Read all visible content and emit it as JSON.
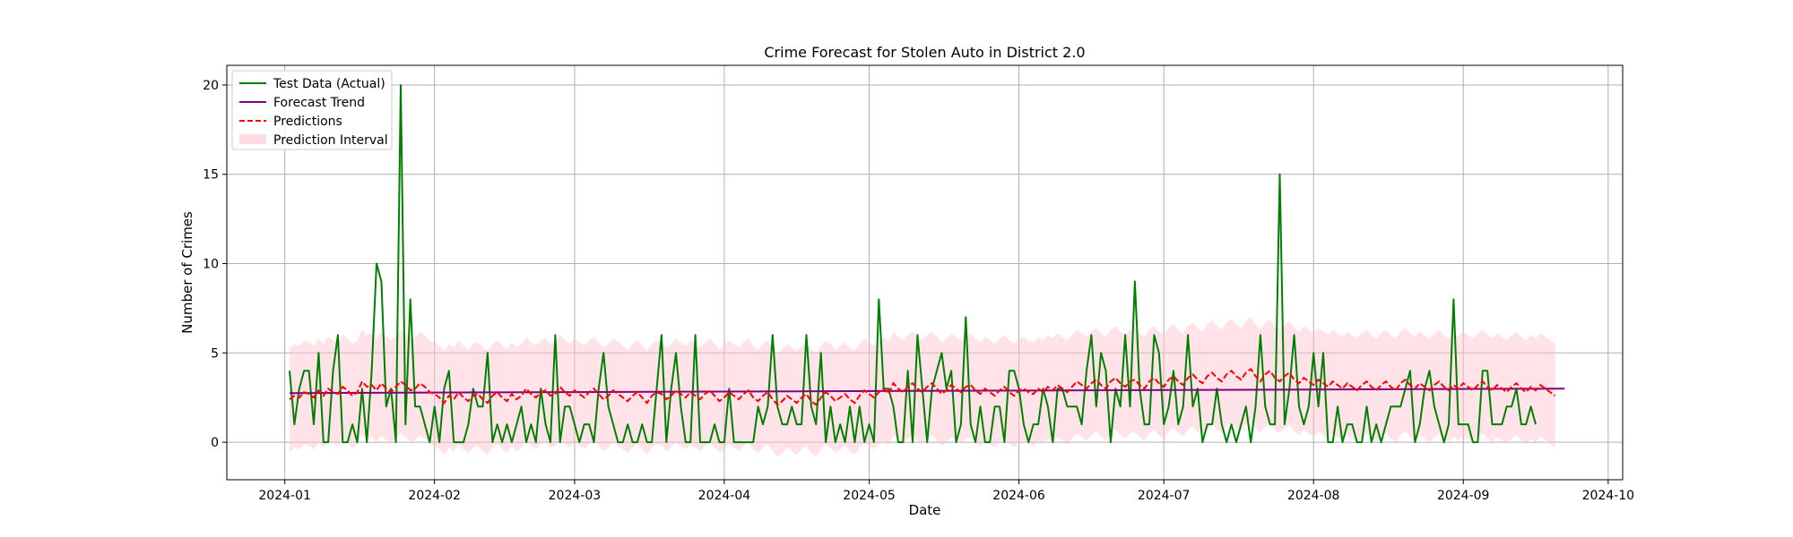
{
  "chart_data": {
    "type": "line",
    "title": "Crime Forecast for Stolen Auto in District 2.0",
    "xlabel": "Date",
    "ylabel": "Number of Crimes",
    "x_start": "2024-01-02",
    "x_end": "2024-09-22",
    "xlim": [
      "2023-12-20",
      "2024-10-04"
    ],
    "ylim": [
      -2.1,
      21.1
    ],
    "xticks": [
      "2024-01-01",
      "2024-02-01",
      "2024-03-01",
      "2024-04-01",
      "2024-05-01",
      "2024-06-01",
      "2024-07-01",
      "2024-08-01",
      "2024-09-01",
      "2024-10-01"
    ],
    "yticks": [
      0,
      5,
      10,
      15,
      20
    ],
    "grid": true,
    "legend_position": "top-left",
    "legend": [
      "Test Data (Actual)",
      "Forecast Trend",
      "Predictions",
      "Prediction Interval"
    ],
    "colors": {
      "actual": "#008000",
      "trend": "#800080",
      "predictions": "#ff0000",
      "interval": "#ffc0cb"
    },
    "series": [
      {
        "name": "Test Data (Actual)",
        "style": "solid",
        "values": [
          4,
          1,
          3,
          4,
          4,
          1,
          5,
          0,
          0,
          4,
          6,
          0,
          0,
          1,
          0,
          3,
          0,
          4,
          10,
          9,
          2,
          3,
          0,
          20,
          1,
          8,
          2,
          2,
          1,
          0,
          2,
          0,
          3,
          4,
          0,
          0,
          0,
          1,
          3,
          2,
          2,
          5,
          0,
          1,
          0,
          1,
          0,
          1,
          2,
          0,
          1,
          0,
          3,
          1,
          0,
          6,
          0,
          2,
          2,
          1,
          0,
          1,
          1,
          0,
          3,
          5,
          2,
          1,
          0,
          0,
          1,
          0,
          0,
          1,
          0,
          0,
          3,
          6,
          0,
          3,
          5,
          2,
          0,
          0,
          6,
          0,
          0,
          0,
          1,
          0,
          0,
          3,
          0,
          0,
          0,
          0,
          0,
          2,
          1,
          2,
          6,
          2,
          1,
          1,
          2,
          1,
          1,
          6,
          2,
          1,
          5,
          0,
          2,
          0,
          1,
          0,
          2,
          0,
          2,
          0,
          1,
          0,
          8,
          3,
          3,
          2,
          0,
          0,
          4,
          0,
          6,
          3,
          0,
          3,
          4,
          5,
          3,
          4,
          0,
          1,
          7,
          1,
          0,
          2,
          0,
          0,
          2,
          2,
          0,
          4,
          4,
          3,
          1,
          0,
          1,
          1,
          3,
          2,
          0,
          3,
          3,
          2,
          2,
          2,
          1,
          4,
          6,
          2,
          5,
          4,
          0,
          3,
          2,
          6,
          2,
          9,
          3,
          1,
          1,
          6,
          5,
          1,
          2,
          4,
          1,
          2,
          6,
          2,
          3,
          0,
          1,
          1,
          3,
          1,
          0,
          1,
          0,
          1,
          2,
          0,
          2,
          6,
          2,
          1,
          1,
          15,
          1,
          3,
          6,
          2,
          1,
          2,
          5,
          2,
          5,
          0,
          0,
          2,
          0,
          1,
          1,
          0,
          0,
          2,
          0,
          1,
          0,
          1,
          2,
          2,
          2,
          3,
          4,
          0,
          1,
          3,
          4,
          2,
          1,
          0,
          1,
          8,
          1,
          1,
          1,
          0,
          0,
          4,
          4,
          1,
          1,
          1,
          2,
          2,
          3,
          1,
          1,
          2,
          1
        ],
        "note": ""
      },
      {
        "name": "Forecast Trend",
        "style": "solid",
        "x": [
          "2024-01-02",
          "2024-09-22"
        ],
        "values": [
          2.75,
          3.0
        ]
      },
      {
        "name": "Predictions",
        "style": "dashed",
        "values": [
          2.4,
          2.6,
          2.5,
          2.8,
          2.7,
          2.5,
          2.9,
          2.6,
          3.0,
          2.8,
          2.7,
          3.1,
          2.9,
          2.6,
          2.8,
          3.4,
          3.1,
          3.2,
          2.9,
          3.3,
          3.0,
          2.8,
          3.1,
          3.4,
          3.2,
          2.9,
          3.0,
          3.3,
          3.1,
          2.8,
          2.7,
          2.5,
          2.2,
          2.6,
          2.4,
          2.8,
          2.5,
          2.3,
          2.6,
          2.7,
          2.4,
          2.2,
          2.6,
          2.8,
          2.5,
          2.3,
          2.7,
          2.4,
          2.6,
          3.0,
          2.7,
          2.5,
          2.8,
          2.9,
          2.6,
          2.7,
          3.1,
          2.8,
          2.6,
          2.9,
          2.7,
          2.5,
          2.8,
          3.0,
          2.7,
          2.4,
          2.6,
          2.9,
          2.7,
          2.5,
          2.3,
          2.6,
          2.8,
          2.5,
          2.2,
          2.6,
          2.8,
          2.7,
          2.4,
          2.6,
          2.9,
          2.7,
          2.5,
          2.8,
          2.6,
          2.4,
          2.7,
          2.9,
          2.6,
          2.3,
          2.5,
          2.8,
          2.6,
          2.4,
          2.7,
          2.9,
          2.5,
          2.3,
          2.6,
          2.8,
          2.4,
          2.1,
          2.3,
          2.6,
          2.4,
          2.2,
          2.5,
          2.7,
          2.3,
          2.1,
          2.5,
          2.8,
          2.6,
          2.3,
          2.5,
          2.7,
          2.4,
          2.2,
          2.6,
          2.9,
          2.7,
          2.5,
          2.8,
          3.0,
          2.7,
          3.3,
          3.0,
          2.8,
          3.1,
          3.3,
          3.0,
          2.8,
          3.1,
          3.3,
          3.0,
          2.7,
          2.9,
          3.2,
          3.0,
          2.8,
          3.1,
          3.2,
          2.9,
          2.7,
          3.0,
          2.8,
          2.6,
          2.9,
          3.1,
          2.8,
          2.6,
          2.9,
          3.0,
          2.8,
          2.7,
          3.0,
          2.8,
          3.1,
          2.9,
          3.2,
          3.0,
          2.8,
          3.1,
          3.4,
          3.2,
          3.0,
          3.3,
          3.5,
          3.2,
          3.0,
          3.4,
          3.6,
          3.3,
          3.1,
          3.4,
          3.5,
          3.2,
          3.0,
          3.4,
          3.6,
          3.3,
          3.1,
          3.5,
          3.7,
          3.4,
          3.2,
          3.6,
          3.8,
          3.5,
          3.3,
          3.7,
          3.9,
          3.6,
          3.4,
          3.8,
          4.0,
          3.7,
          3.5,
          3.9,
          4.1,
          3.7,
          3.4,
          3.8,
          4.0,
          3.6,
          3.4,
          3.7,
          3.9,
          3.5,
          3.3,
          3.6,
          3.4,
          3.2,
          3.5,
          3.3,
          3.1,
          3.4,
          3.2,
          3.0,
          3.3,
          3.1,
          2.9,
          3.2,
          3.4,
          3.1,
          2.9,
          3.2,
          3.4,
          3.1,
          2.9,
          3.3,
          3.5,
          3.2,
          3.0,
          3.3,
          3.1,
          2.9,
          3.2,
          3.4,
          3.1,
          2.9,
          3.2,
          3.0,
          3.3,
          3.1,
          2.9,
          3.2,
          3.4,
          3.1,
          2.9,
          3.2,
          3.0,
          2.8,
          3.1,
          3.3,
          3.0,
          2.8,
          3.1,
          2.9,
          3.2,
          3.0,
          2.8,
          2.6
        ]
      },
      {
        "name": "Prediction Interval",
        "type": "band",
        "lower_offset": -2.9,
        "upper_offset": 2.9
      }
    ]
  }
}
